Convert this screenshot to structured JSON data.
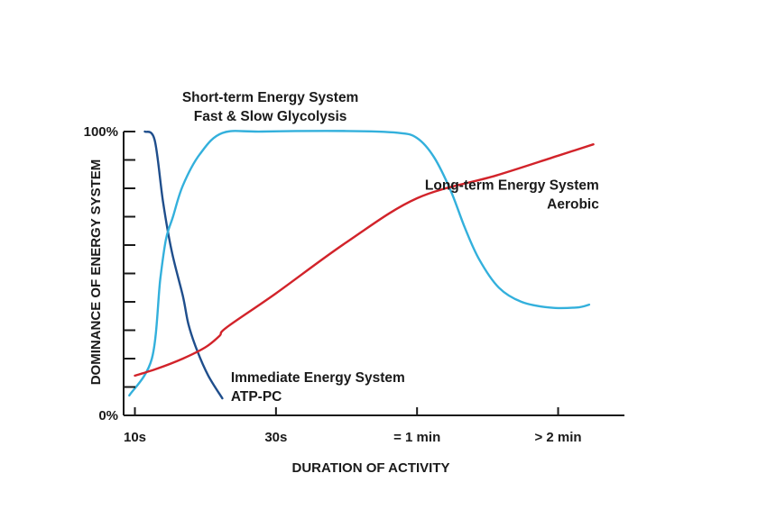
{
  "chart_data": {
    "type": "line",
    "xlabel": "DURATION OF ACTIVITY",
    "ylabel": "DOMINANCE OF ENERGY SYSTEM",
    "x_ticks": [
      {
        "value": 0,
        "label": "10s"
      },
      {
        "value": 1,
        "label": "30s"
      },
      {
        "value": 2,
        "label": "= 1 min"
      },
      {
        "value": 3,
        "label": "> 2 min"
      }
    ],
    "y_ticks": [
      {
        "value": 0,
        "label": "0%"
      },
      {
        "value": 10,
        "label": ""
      },
      {
        "value": 20,
        "label": ""
      },
      {
        "value": 30,
        "label": ""
      },
      {
        "value": 40,
        "label": ""
      },
      {
        "value": 50,
        "label": ""
      },
      {
        "value": 60,
        "label": ""
      },
      {
        "value": 70,
        "label": ""
      },
      {
        "value": 80,
        "label": ""
      },
      {
        "value": 90,
        "label": ""
      },
      {
        "value": 100,
        "label": "100%"
      }
    ],
    "xlim": [
      -0.08,
      3.47
    ],
    "ylim": [
      0,
      100
    ],
    "grid": false,
    "series": [
      {
        "name": "Immediate Energy System ATP-PC",
        "color": "#1f4e8c",
        "points": [
          [
            0.07,
            100
          ],
          [
            0.14,
            97
          ],
          [
            0.2,
            75
          ],
          [
            0.26,
            58
          ],
          [
            0.34,
            42
          ],
          [
            0.38,
            32
          ],
          [
            0.44,
            23
          ],
          [
            0.52,
            14
          ],
          [
            0.62,
            6
          ]
        ]
      },
      {
        "name": "Short-term Energy System Fast & Slow Glycolysis",
        "color": "#33b0dc",
        "points": [
          [
            -0.04,
            7
          ],
          [
            0.12,
            20
          ],
          [
            0.18,
            48
          ],
          [
            0.22,
            62
          ],
          [
            0.27,
            70
          ],
          [
            0.34,
            81
          ],
          [
            0.46,
            92
          ],
          [
            0.62,
            99.5
          ],
          [
            0.9,
            100
          ],
          [
            1.5,
            100.2
          ],
          [
            1.86,
            99.6
          ],
          [
            2.0,
            97.7
          ],
          [
            2.12,
            91
          ],
          [
            2.24,
            79
          ],
          [
            2.34,
            66
          ],
          [
            2.44,
            55
          ],
          [
            2.58,
            45
          ],
          [
            2.74,
            40
          ],
          [
            2.94,
            38
          ],
          [
            3.13,
            38
          ],
          [
            3.22,
            39
          ]
        ]
      },
      {
        "name": "Long-term Energy System Aerobic",
        "color": "#d2232a",
        "points": [
          [
            0.0,
            14
          ],
          [
            0.16,
            16.5
          ],
          [
            0.34,
            20
          ],
          [
            0.5,
            24
          ],
          [
            0.6,
            28
          ],
          [
            0.65,
            31
          ],
          [
            1.0,
            43
          ],
          [
            1.5,
            61
          ],
          [
            2.0,
            76.5
          ],
          [
            2.56,
            84.5
          ],
          [
            3.0,
            91.5
          ],
          [
            3.25,
            95.5
          ]
        ]
      }
    ],
    "annotations": [
      {
        "lines": [
          "Short-term Energy System",
          "Fast & Slow Glycolysis"
        ],
        "align": "middle",
        "x": 0.96,
        "y": 110.5
      },
      {
        "lines": [
          "Long-term Energy System",
          "Aerobic"
        ],
        "align": "end",
        "x": 3.29,
        "y": 79.5
      },
      {
        "lines": [
          "Immediate Energy System",
          "ATP-PC"
        ],
        "align": "start",
        "x": 0.68,
        "y": 11.8
      }
    ]
  }
}
